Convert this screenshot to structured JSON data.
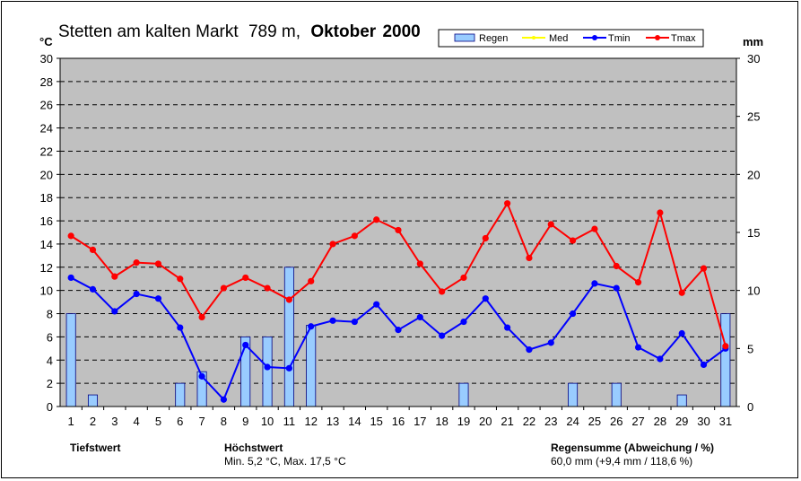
{
  "title": {
    "station": "Stetten am kalten Markt",
    "elevation": "789 m,",
    "month": "Oktober",
    "year": "2000"
  },
  "colors": {
    "plot_bg": "#c0c0c0",
    "rain": "#99ccff",
    "rain_edge": "#000080",
    "med": "#ffff00",
    "tmin": "#0000ff",
    "tmax": "#ff0000"
  },
  "legend": [
    "Regen",
    "Med",
    "Tmin",
    "Tmax"
  ],
  "chart_data": {
    "type": "bar+line",
    "categories": [
      "1",
      "2",
      "3",
      "4",
      "5",
      "6",
      "7",
      "8",
      "9",
      "10",
      "11",
      "12",
      "13",
      "14",
      "15",
      "16",
      "17",
      "18",
      "19",
      "20",
      "21",
      "22",
      "23",
      "24",
      "25",
      "26",
      "27",
      "28",
      "29",
      "30",
      "31"
    ],
    "y_left": {
      "label": "°C",
      "range": [
        0,
        30
      ],
      "ticks": [
        "0",
        "2",
        "4",
        "6",
        "8",
        "10",
        "12",
        "14",
        "16",
        "18",
        "20",
        "22",
        "24",
        "26",
        "28",
        "30"
      ]
    },
    "y_right": {
      "label": "mm",
      "range": [
        0,
        30
      ],
      "ticks": [
        "0",
        "5",
        "10",
        "15",
        "20",
        "25",
        "30"
      ]
    },
    "grid": "dashed horizontal",
    "legend_position": "top-right",
    "series": [
      {
        "name": "Regen",
        "type": "bar",
        "axis": "right",
        "values": [
          8,
          1,
          0,
          0,
          0,
          2,
          3,
          0,
          6,
          6,
          12,
          7,
          0,
          0,
          0,
          0,
          0,
          0,
          2,
          0,
          0,
          0,
          0,
          2,
          0,
          2,
          0,
          0,
          1,
          0,
          8
        ]
      },
      {
        "name": "Tmin",
        "type": "line",
        "axis": "left",
        "values": [
          11.1,
          10.1,
          8.2,
          9.7,
          9.3,
          6.8,
          2.6,
          0.6,
          5.3,
          3.4,
          3.3,
          6.9,
          7.4,
          7.3,
          8.8,
          6.6,
          7.7,
          6.1,
          7.3,
          9.3,
          6.8,
          4.9,
          5.5,
          8.0,
          10.6,
          10.2,
          5.1,
          4.1,
          6.3,
          3.6,
          5.0
        ]
      },
      {
        "name": "Tmax",
        "type": "line",
        "axis": "left",
        "values": [
          14.7,
          13.5,
          11.2,
          12.4,
          12.3,
          11.0,
          7.7,
          10.2,
          11.1,
          10.2,
          9.2,
          10.8,
          14.0,
          14.7,
          16.1,
          15.2,
          12.3,
          9.9,
          11.1,
          14.5,
          17.5,
          12.8,
          15.7,
          14.3,
          15.3,
          12.1,
          10.7,
          16.7,
          9.8,
          11.9,
          5.2
        ]
      }
    ]
  },
  "footer": {
    "tiefstwert": "Tiefstwert",
    "hoechstwert": "Höchstwert",
    "minmax": "Min. 5,2 °C, Max. 17,5 °C",
    "regensumme": "Regensumme (Abweichung / %)",
    "regen_value": "60,0 mm (+9,4 mm / 118,6 %)"
  }
}
